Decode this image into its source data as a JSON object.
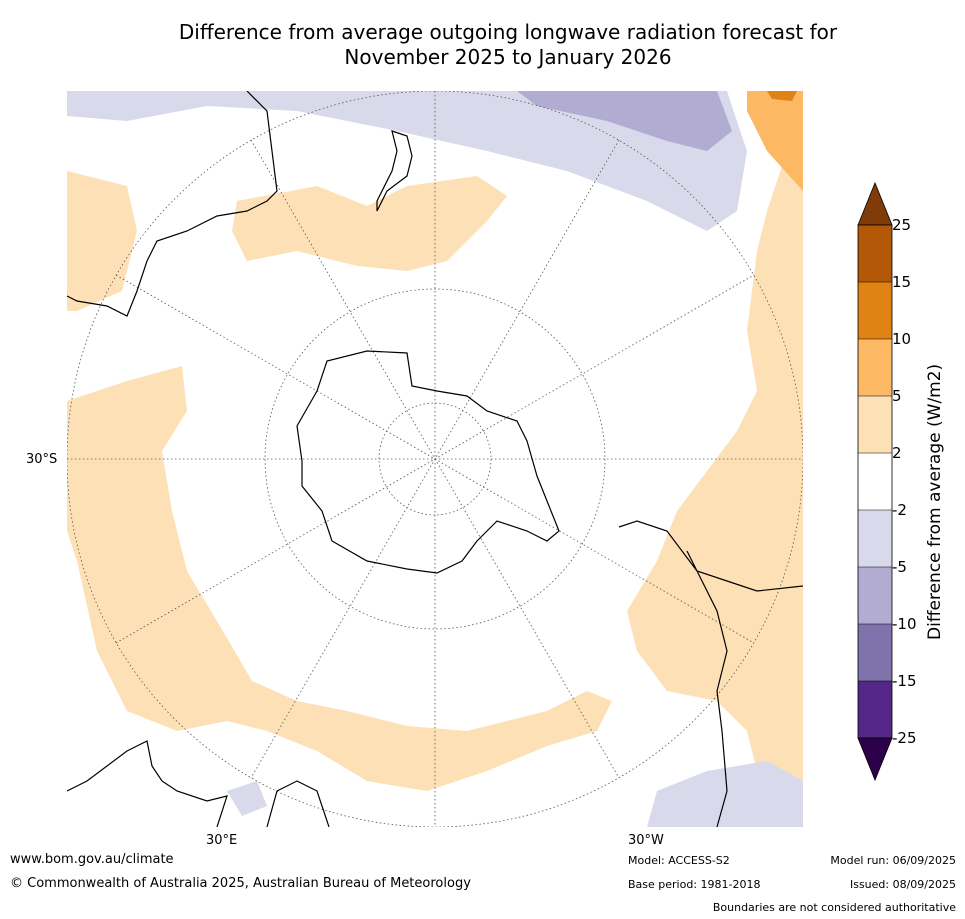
{
  "title_line1": "Difference from average outgoing longwave radiation forecast for",
  "title_line2": "November 2025 to January 2026",
  "axis_labels": {
    "lat": "30°S",
    "lon_left": "30°E",
    "lon_right": "30°W"
  },
  "colorbar": {
    "label": "Difference from average (W/m2)",
    "ticks": [
      "25",
      "15",
      "10",
      "5",
      "2",
      "-2",
      "-5",
      "-10",
      "-15",
      "-25"
    ],
    "colors": {
      "above_25": "#7f3b08",
      "15_to_25": "#b35806",
      "10_to_15": "#e08214",
      "5_to_10": "#fdb863",
      "2_to_5": "#fee0b6",
      "-2_to_2": "#ffffff",
      "-5_to_-2": "#d8daeb",
      "-10_to_-5": "#b2abd2",
      "-15_to_-10": "#8073ac",
      "-25_to_-15": "#542788",
      "below_-25": "#2d004b"
    }
  },
  "footer": {
    "website": "www.bom.gov.au/climate",
    "copyright": "© Commonwealth of Australia 2025, Australian Bureau of Meteorology",
    "model": "Model: ACCESS-S2",
    "base_period": "Base period: 1981-2018",
    "model_run": "Model run: 06/09/2025",
    "issued": "Issued: 08/09/2025",
    "disclaimer": "Boundaries are not considered authoritative"
  }
}
